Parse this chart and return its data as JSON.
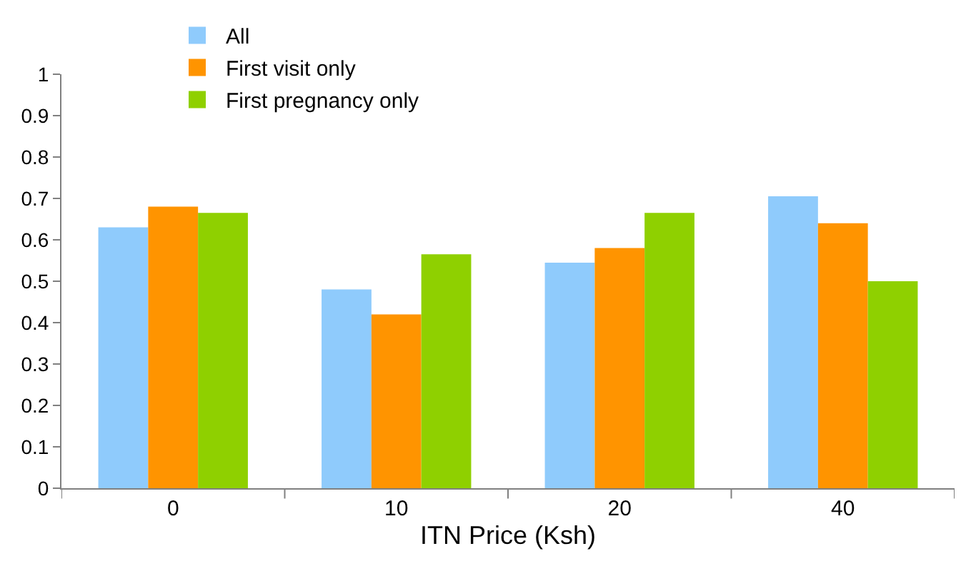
{
  "chart_data": {
    "type": "bar",
    "xlabel": "ITN Price (Ksh)",
    "categories": [
      "0",
      "10",
      "20",
      "40"
    ],
    "series": [
      {
        "name": "All",
        "color": "#8fcbfc",
        "values": [
          0.63,
          0.48,
          0.545,
          0.705
        ]
      },
      {
        "name": "First visit only",
        "color": "#ff9400",
        "values": [
          0.68,
          0.42,
          0.58,
          0.64
        ]
      },
      {
        "name": "First pregnancy only",
        "color": "#8fd000",
        "values": [
          0.665,
          0.565,
          0.665,
          0.5
        ]
      }
    ],
    "ylim": [
      0,
      1
    ],
    "yticks": [
      0,
      0.1,
      0.2,
      0.3,
      0.4,
      0.5,
      0.6,
      0.7,
      0.8,
      0.9,
      1
    ],
    "legend": "top left"
  }
}
